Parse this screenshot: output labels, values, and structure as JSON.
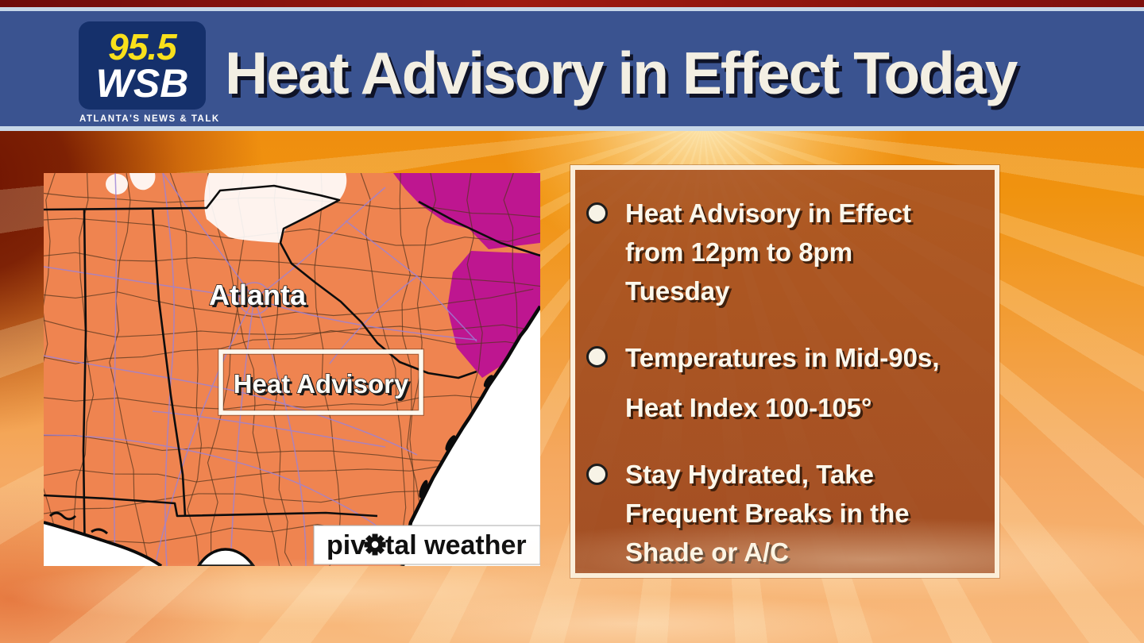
{
  "station": {
    "frequency": "95.5",
    "call_letters": "WSB",
    "tagline": "ATLANTA'S NEWS & TALK",
    "logo_colors": {
      "background": "#15306B",
      "frequency_text": "#F9E01B",
      "call_letters_text": "#FFFFFF"
    }
  },
  "header": {
    "title": "Heat Advisory in Effect Today",
    "bar_color": "#3A5390",
    "title_color": "#F3EFE3"
  },
  "map": {
    "city_label": "Atlanta",
    "advisory_box_label": "Heat Advisory",
    "watermark": {
      "prefix": "piv",
      "suffix": "tal weather",
      "icon": "gear-icon"
    },
    "colors": {
      "heat_advisory": "#EF8450",
      "excessive_heat_warning": "#BE1690",
      "no_alert": "#FFFFFF",
      "state_border": "#0D0D0D",
      "highway": "#9B82D8"
    }
  },
  "panel": {
    "background": "#A5542B",
    "border": "#FBEEDB",
    "bullets": [
      "Heat Advisory in Effect\nfrom 12pm to 8pm\nTuesday",
      "Temperatures in Mid-90s,\nHeat Index 100-105°",
      "Stay Hydrated, Take\nFrequent Breaks in the\nShade or A/C"
    ]
  }
}
